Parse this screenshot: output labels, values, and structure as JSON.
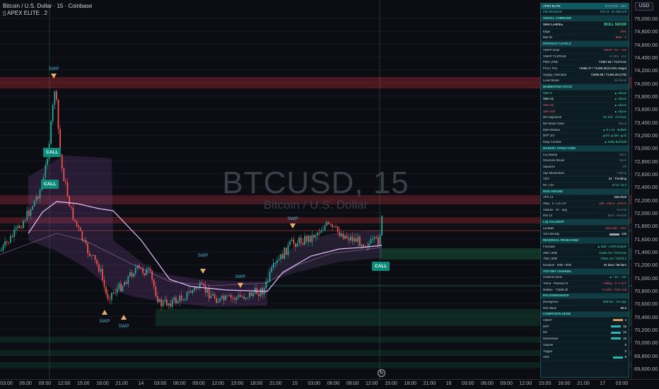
{
  "symbol": {
    "line1": "Bitcoin / U.S. Dollar · 15 · Coinbase",
    "line2": "▯ APEX ELITE . 2"
  },
  "watermark": {
    "ticker": "BTCUSD, 15",
    "name": "Bitcoin / U.S. Dollar"
  },
  "currency_button": "USD",
  "price_axis": {
    "ticks": [
      "75,000.00",
      "74,800.00",
      "74,600.00",
      "74,400.00",
      "74,200.00",
      "74,000.00",
      "73,800.00",
      "73,600.00",
      "73,400.00",
      "73,200.00",
      "73,000.00",
      "72,800.00",
      "72,600.00",
      "72,400.00",
      "72,200.00",
      "72,000.00",
      "71,800.00",
      "71,600.00",
      "71,400.00",
      "71,200.00",
      "71,000.00",
      "70,800.00",
      "70,600.00",
      "70,400.00",
      "70,200.00",
      "70,000.00",
      "69,800.00",
      "69,600.00"
    ],
    "max": 75000,
    "min": 69600
  },
  "time_axis": {
    "ticks": [
      "03:00",
      "06:00",
      "09:00",
      "12:00",
      "15:00",
      "18:00",
      "21:00",
      "14",
      "03:00",
      "06:00",
      "09:00",
      "12:00",
      "15:00",
      "18:00",
      "21:00",
      "15",
      "03:00",
      "06:00",
      "09:00",
      "12:00",
      "15:00",
      "18:00",
      "21:00",
      "16",
      "03:00",
      "06:00",
      "09:00",
      "12:00",
      "15:00",
      "18:00",
      "21:00",
      "17",
      "03:00"
    ]
  },
  "markers": {
    "swp_labels": [
      "SWP",
      "SWP",
      "SWP",
      "SWP",
      "SWP",
      "SWP"
    ],
    "call_labels": [
      "CALL",
      "CALL",
      "CALL"
    ]
  },
  "colors": {
    "bull": "#26a69a",
    "bear": "#ef5350",
    "accent": "#37c8c0",
    "panel_header": "#0e5a62"
  },
  "panel": {
    "header": {
      "title": "APEX ELITE",
      "right_a": "BTCUSD",
      "right_b": "15m"
    },
    "session": {
      "label": "PM SESSION",
      "value": "BTC $ · 0s 49m left"
    },
    "rows": [
      {
        "type": "section",
        "label": "SIGNAL COMMAND"
      },
      {
        "type": "watch",
        "label": "WATCHING",
        "value": "BULL 56/100"
      },
      {
        "label": "Edge",
        "value": "50%",
        "cls": "red"
      },
      {
        "label": "Bull Sk",
        "value": "Bear · 5",
        "cls": "red"
      },
      {
        "type": "section",
        "label": "INTRADAY LEVELS"
      },
      {
        "label": "VWAP Zone",
        "value": "VWAP +1σ · +2σ",
        "cls": "red"
      },
      {
        "label": "VWAP 71,975.81",
        "value": "+0.33% · dev",
        "cls": "muted"
      },
      {
        "label": "PMH | PML",
        "value": "71957.56 / 71274.01",
        "cls": "white"
      },
      {
        "label": "PCH | PCL",
        "value": "71595.47 / 71289.38 [0.43% range]",
        "cls": "white"
      },
      {
        "label": "Supply | Demand",
        "value": "71856.99 / 71464.08 (178)",
        "cls": "white"
      },
      {
        "label": "Level Break",
        "value": "No break",
        "cls": "muted"
      },
      {
        "type": "section",
        "label": "MOMENTUM STACK"
      },
      {
        "label": "SMA 9",
        "value": "▲ Above",
        "cls": "green",
        "lcls": "green"
      },
      {
        "label": "SMA 21",
        "value": "▲ Above",
        "cls": "green",
        "lcls": "white"
      },
      {
        "label": "SMA 50",
        "value": "▲ Above",
        "cls": "green",
        "lcls": "red"
      },
      {
        "label": "SMA 200",
        "value": "▲ Above",
        "cls": "green",
        "lcls": "red"
      },
      {
        "label": "MA Alignment",
        "value": "4/4 bull · 0/4 bear",
        "cls": "teal"
      },
      {
        "label": "MA Stack Order",
        "value": "Mixed",
        "cls": "muted"
      },
      {
        "label": "EMA Ribbon",
        "value": "▲ 8 > 21 · Bullish",
        "cls": "green"
      },
      {
        "label": "MTF 3/3",
        "value": "▲5m ▲15m ▲1h",
        "cls": "green"
      },
      {
        "label": "Daily Context",
        "value": "▲ Daily Bull Bull",
        "cls": "green"
      },
      {
        "type": "section",
        "label": "MARKET STRUCTURE"
      },
      {
        "label": "Liq Sweep",
        "value": "None",
        "cls": "muted"
      },
      {
        "label": "Structure Break",
        "value": "None",
        "cls": "muted"
      },
      {
        "label": "Squeeze",
        "value": "Off",
        "cls": "muted"
      },
      {
        "label": "Sqz Momentum",
        "value": "↓ Falling",
        "cls": "muted"
      },
      {
        "label": "ADX",
        "value": "24 · Trending",
        "cls": "white"
      },
      {
        "label": "DI+ | DI-",
        "value": "27.8 / 13.3",
        "cls": "green"
      },
      {
        "type": "section",
        "label": "RISK ENGINE"
      },
      {
        "label": "ATR 14",
        "value": "159.0029",
        "cls": "white"
      },
      {
        "label": "Stop · 1 / 1.5 / 2×",
        "value": "159 · 238.5 · 318.01",
        "cls": "red"
      },
      {
        "label": "Volume · 3× · avg",
        "value": "Normal",
        "cls": "muted"
      },
      {
        "label": "RSI 14",
        "value": "56.6 · Neutral",
        "cls": "muted"
      },
      {
        "type": "section",
        "label": "LIQ VOLUMAP"
      },
      {
        "label": "Liq Bias",
        "value": "Sell Side · 54%",
        "cls": "red"
      },
      {
        "label": "Vol Intensity",
        "value": "125",
        "cls": "white",
        "bar": "#9aa4a8"
      },
      {
        "type": "section",
        "label": "REVERSAL PROB ZONE"
      },
      {
        "label": "Forecast",
        "value": "▲ Bull · LOW sample",
        "cls": "green"
      },
      {
        "label": "25th  |  50th",
        "value": "72205.76 / 72742.81",
        "cls": "green"
      },
      {
        "label": "75th  |  90th",
        "value": "73641.15 / 74679.3",
        "cls": "green"
      },
      {
        "label": "Duration · 50th / 90th",
        "value": "24 bars / 58 bars",
        "cls": "white"
      },
      {
        "type": "section",
        "label": "STD DEV CHANNEL"
      },
      {
        "label": "Channel Zone",
        "value": "▲ +1σ · +2σ",
        "cls": "green"
      },
      {
        "label": "Trend · Pearson R",
        "value": "↓ Falling · R -0.427",
        "cls": "red"
      },
      {
        "label": "Midline · 71849.32",
        "value": "+0.19% · from mid",
        "cls": "red"
      },
      {
        "type": "section",
        "label": "RSI DIVERGENCE"
      },
      {
        "label": "Divergence",
        "value": "Bull Div · 2% ago",
        "cls": "green"
      },
      {
        "label": "RSI Value",
        "value": "56.6",
        "cls": "white"
      },
      {
        "type": "section",
        "label": "COMPOSITE EDGE"
      },
      {
        "label": "VWAP",
        "value": "4",
        "cls": "white",
        "bar": "#d0a060"
      },
      {
        "label": "MTF",
        "value": "15",
        "cls": "white",
        "bar": "#26b8b0"
      },
      {
        "label": "MA",
        "value": "12",
        "cls": "white",
        "bar": "#26b8b0"
      },
      {
        "label": "Momentum",
        "value": "15",
        "cls": "white",
        "bar": "#26b8b0"
      },
      {
        "label": "Volume",
        "value": "0",
        "cls": "white"
      },
      {
        "label": "Trigger",
        "value": "0",
        "cls": "white"
      },
      {
        "label": "ADX",
        "value": "5",
        "cls": "white",
        "bar": "#26b8b0"
      }
    ]
  }
}
